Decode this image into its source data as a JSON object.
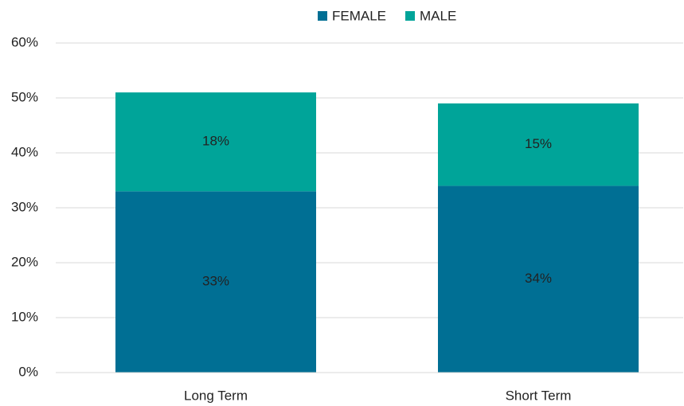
{
  "chart_data": {
    "type": "stacked_bar",
    "categories": [
      "Long Term",
      "Short Term"
    ],
    "series": [
      {
        "name": "FEMALE",
        "color": "#006f94",
        "values": [
          33,
          34
        ],
        "value_labels": [
          "33%",
          "34%"
        ]
      },
      {
        "name": "MALE",
        "color": "#00a499",
        "values": [
          18,
          15
        ],
        "value_labels": [
          "18%",
          "15%"
        ]
      }
    ],
    "ylim": [
      0,
      60
    ],
    "yticks": [
      {
        "value": 0,
        "label": "0%"
      },
      {
        "value": 10,
        "label": "10%"
      },
      {
        "value": 20,
        "label": "20%"
      },
      {
        "value": 30,
        "label": "30%"
      },
      {
        "value": 40,
        "label": "40%"
      },
      {
        "value": 50,
        "label": "50%"
      },
      {
        "value": 60,
        "label": "60%"
      }
    ],
    "grid": true,
    "legend": "top"
  }
}
